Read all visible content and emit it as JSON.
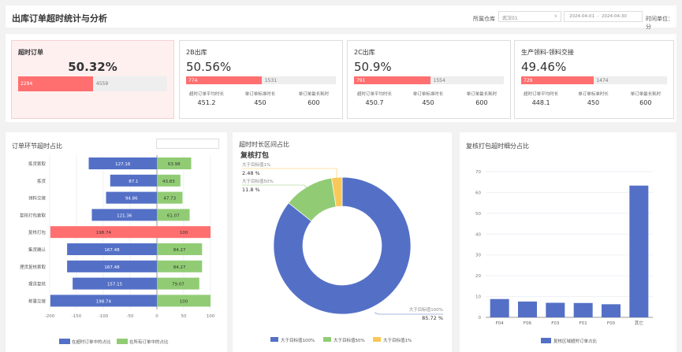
{
  "header": {
    "title": "出库订单超时统计与分析",
    "warehouse_label": "所属仓库",
    "warehouse_value": "武汉01",
    "date_start": "2024-04-01",
    "date_sep": "-",
    "date_end": "2024-04-30",
    "time_unit": "时间单位：分"
  },
  "cards": [
    {
      "name": "超时订单",
      "pct": "50.32%",
      "timeout": "2294",
      "total": "4559",
      "fraction": 0.5032
    },
    {
      "name": "2B出库",
      "pct": "50.56%",
      "timeout": "774",
      "total": "1531",
      "fraction": 0.5056,
      "stats": [
        {
          "label": "超时订单平均时长",
          "value": "451.2"
        },
        {
          "label": "单订单标准时长",
          "value": "450"
        },
        {
          "label": "单订单最长耗时",
          "value": "600"
        }
      ]
    },
    {
      "name": "2C出库",
      "pct": "50.9%",
      "timeout": "791",
      "total": "1554",
      "fraction": 0.509,
      "stats": [
        {
          "label": "超时订单平均时长",
          "value": "450.7"
        },
        {
          "label": "单订单标准时长",
          "value": "450"
        },
        {
          "label": "单订单最长耗时",
          "value": "600"
        }
      ]
    },
    {
      "name": "生产领料-领料交接",
      "pct": "49.46%",
      "timeout": "729",
      "total": "1474",
      "fraction": 0.4946,
      "stats": [
        {
          "label": "超时订单平均时长",
          "value": "448.1"
        },
        {
          "label": "单订单标准时长",
          "value": "450"
        },
        {
          "label": "单订单最长耗时",
          "value": "600"
        }
      ]
    }
  ],
  "colors": {
    "blue": "#5470c6",
    "green": "#91cc75",
    "yellow": "#fac858",
    "red": "#ff6f6f"
  },
  "chart_data": [
    {
      "type": "bar",
      "orientation": "horizontal",
      "title": "订单环节超时占比",
      "categories": [
        "拣货索取",
        "拣货",
        "领料交接",
        "复核打包索取",
        "复核打包",
        "集货确认",
        "理货复核索取",
        "理货复核",
        "称重交接"
      ],
      "highlight": "复核打包",
      "series": [
        {
          "name": "在超时订单中的占比",
          "values": [
            -127.16,
            -87.1,
            -94.86,
            -121.36,
            -198.74,
            -167.48,
            -167.48,
            -157.15,
            -198.74
          ],
          "labels": [
            "127.16",
            "87.1",
            "94.86",
            "121.36",
            "198.74",
            "167.48",
            "167.48",
            "157.15",
            "198.74"
          ]
        },
        {
          "name": "在所有订单中的占比",
          "values": [
            63.98,
            43.83,
            47.73,
            61.07,
            100,
            84.27,
            84.27,
            79.07,
            100
          ],
          "labels": [
            "63.98",
            "43.83",
            "47.73",
            "61.07",
            "100",
            "84.27",
            "84.27",
            "79.07",
            "100"
          ]
        }
      ],
      "xlim": [
        -200,
        100
      ],
      "xticks": [
        "-200",
        "-150",
        "-100",
        "-50",
        "0",
        "50",
        "100"
      ]
    },
    {
      "type": "pie",
      "title": "超时时长区间占比",
      "subtitle": "复核打包",
      "slices": [
        {
          "name": "大于目标值100%",
          "value": 85.72,
          "label": "85.72 %"
        },
        {
          "name": "大于目标值50%",
          "value": 11.8,
          "label": "11.8 %"
        },
        {
          "name": "大于目标值1%",
          "value": 2.48,
          "label": "2.48 %"
        }
      ]
    },
    {
      "type": "bar",
      "title": "复核打包超时细分占比",
      "categories": [
        "F04",
        "F06",
        "F03",
        "F01",
        "F00",
        "其它"
      ],
      "series": [
        {
          "name": "复核区域超时订单占比",
          "values": [
            8.8,
            7.6,
            7.0,
            6.9,
            6.3,
            63.3
          ]
        }
      ],
      "ylim": [
        0,
        70
      ],
      "yticks": [
        "0",
        "10",
        "20",
        "30",
        "40",
        "50",
        "60",
        "70"
      ]
    }
  ]
}
